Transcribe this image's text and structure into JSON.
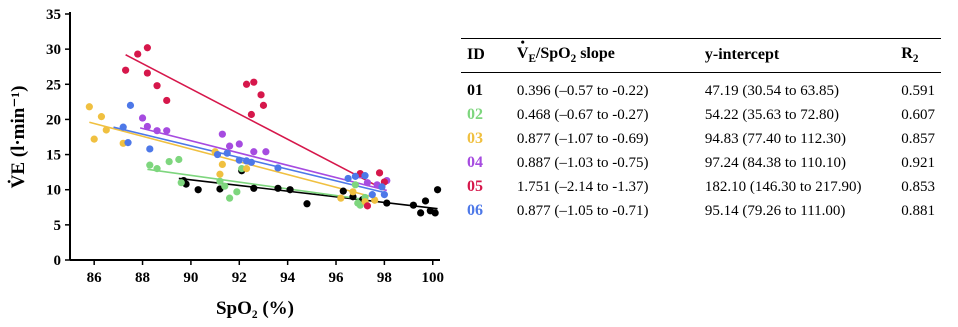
{
  "chart_data": {
    "type": "scatter",
    "xlabel": "SpO₂ (%)",
    "ylabel": "V̇E (l·min⁻¹)",
    "xlim": [
      85,
      100.3
    ],
    "ylim": [
      0,
      35
    ],
    "xticks": [
      86,
      88,
      90,
      92,
      94,
      96,
      98,
      100
    ],
    "yticks": [
      0,
      5,
      10,
      15,
      20,
      25,
      30,
      35
    ],
    "grid": false,
    "series": [
      {
        "name": "01",
        "color": "#000000",
        "points": [
          [
            89.7,
            11.3
          ],
          [
            89.8,
            10.8
          ],
          [
            90.3,
            10.0
          ],
          [
            91.2,
            10.1
          ],
          [
            92.1,
            12.7
          ],
          [
            92.6,
            10.2
          ],
          [
            93.6,
            10.2
          ],
          [
            94.1,
            10.0
          ],
          [
            94.8,
            8.0
          ],
          [
            96.3,
            9.8
          ],
          [
            96.7,
            9.0
          ],
          [
            97.1,
            8.6
          ],
          [
            98.1,
            8.1
          ],
          [
            99.2,
            7.8
          ],
          [
            99.5,
            6.7
          ],
          [
            99.7,
            8.4
          ],
          [
            99.9,
            7.0
          ],
          [
            100.1,
            6.7
          ],
          [
            100.2,
            10.0
          ]
        ],
        "fit": [
          [
            89.5,
            11.6
          ],
          [
            100.2,
            7.3
          ]
        ]
      },
      {
        "name": "02",
        "color": "#7ed67e",
        "points": [
          [
            88.3,
            13.5
          ],
          [
            88.6,
            13.0
          ],
          [
            89.1,
            14.0
          ],
          [
            89.5,
            14.3
          ],
          [
            89.6,
            11.0
          ],
          [
            91.2,
            11.2
          ],
          [
            91.4,
            10.5
          ],
          [
            91.6,
            8.8
          ],
          [
            91.9,
            9.7
          ],
          [
            92.1,
            13.0
          ],
          [
            96.8,
            10.7
          ],
          [
            96.9,
            8.1
          ],
          [
            97.0,
            7.8
          ],
          [
            97.2,
            8.9
          ]
        ],
        "fit": [
          [
            88.2,
            12.9
          ],
          [
            97.2,
            8.6
          ]
        ]
      },
      {
        "name": "03",
        "color": "#f0c040",
        "points": [
          [
            85.8,
            21.8
          ],
          [
            86.0,
            17.2
          ],
          [
            86.3,
            20.4
          ],
          [
            86.5,
            18.5
          ],
          [
            87.2,
            16.6
          ],
          [
            91.0,
            15.4
          ],
          [
            91.2,
            12.2
          ],
          [
            91.3,
            13.6
          ],
          [
            92.3,
            13.0
          ],
          [
            96.2,
            8.8
          ],
          [
            96.7,
            9.7
          ],
          [
            97.2,
            8.3
          ],
          [
            97.6,
            8.5
          ]
        ],
        "fit": [
          [
            85.8,
            19.6
          ],
          [
            97.7,
            8.8
          ]
        ]
      },
      {
        "name": "04",
        "color": "#a64be0",
        "points": [
          [
            88.0,
            20.2
          ],
          [
            88.2,
            19.0
          ],
          [
            88.6,
            18.4
          ],
          [
            89.0,
            18.4
          ],
          [
            91.3,
            17.9
          ],
          [
            91.6,
            16.2
          ],
          [
            92.0,
            16.5
          ],
          [
            92.6,
            15.4
          ],
          [
            93.1,
            15.4
          ],
          [
            97.0,
            12.1
          ],
          [
            97.3,
            11.0
          ],
          [
            97.7,
            10.7
          ],
          [
            98.1,
            11.3
          ]
        ],
        "fit": [
          [
            87.9,
            18.8
          ],
          [
            98.1,
            9.9
          ]
        ]
      },
      {
        "name": "05",
        "color": "#d6174b",
        "points": [
          [
            87.3,
            27.0
          ],
          [
            87.8,
            29.3
          ],
          [
            88.2,
            30.2
          ],
          [
            88.2,
            26.6
          ],
          [
            88.6,
            24.8
          ],
          [
            89.0,
            22.7
          ],
          [
            92.3,
            25.0
          ],
          [
            92.5,
            20.7
          ],
          [
            92.6,
            25.3
          ],
          [
            92.9,
            23.5
          ],
          [
            93.0,
            22.0
          ],
          [
            97.0,
            12.3
          ],
          [
            97.3,
            7.7
          ],
          [
            97.8,
            12.4
          ],
          [
            98.0,
            11.1
          ]
        ],
        "fit": [
          [
            87.3,
            29.2
          ],
          [
            98.0,
            10.0
          ]
        ]
      },
      {
        "name": "06",
        "color": "#4d78e8",
        "points": [
          [
            87.2,
            18.9
          ],
          [
            87.4,
            16.7
          ],
          [
            87.5,
            22.0
          ],
          [
            88.3,
            15.8
          ],
          [
            91.1,
            15.0
          ],
          [
            91.5,
            15.2
          ],
          [
            92.0,
            14.2
          ],
          [
            92.3,
            14.1
          ],
          [
            92.5,
            13.9
          ],
          [
            93.6,
            13.1
          ],
          [
            96.5,
            11.6
          ],
          [
            96.8,
            11.9
          ],
          [
            97.2,
            12.0
          ],
          [
            97.5,
            9.3
          ],
          [
            97.9,
            10.4
          ],
          [
            98.0,
            9.3
          ]
        ],
        "fit": [
          [
            86.8,
            18.9
          ],
          [
            98.0,
            9.6
          ]
        ]
      }
    ]
  },
  "table": {
    "headers": {
      "id": "ID",
      "slope_v": "V",
      "slope_e": "E",
      "slope_rest": "/SpO",
      "slope_sub2": "2",
      "slope_tail": " slope",
      "intercept": "y-intercept",
      "r": "R",
      "r_sub": "2"
    },
    "rows": [
      {
        "id": "01",
        "color": "#000000",
        "slope": "0.396 (–0.57 to -0.22)",
        "intercept": "47.19 (30.54 to 63.85)",
        "r2": "0.591"
      },
      {
        "id": "02",
        "color": "#7ed67e",
        "slope": "0.468 (–0.67 to -0.27)",
        "intercept": "54.22 (35.63 to 72.80)",
        "r2": "0.607"
      },
      {
        "id": "03",
        "color": "#f0c040",
        "slope": "0.877 (–1.07 to -0.69)",
        "intercept": "94.83 (77.40 to 112.30)",
        "r2": "0.857"
      },
      {
        "id": "04",
        "color": "#a64be0",
        "slope": "0.887 (–1.03 to -0.75)",
        "intercept": "97.24 (84.38 to 110.10)",
        "r2": "0.921"
      },
      {
        "id": "05",
        "color": "#d6174b",
        "slope": "1.751 (–2.14 to -1.37)",
        "intercept": "182.10 (146.30 to 217.90)",
        "r2": "0.853"
      },
      {
        "id": "06",
        "color": "#4d78e8",
        "slope": "0.877 (–1.05 to -0.71)",
        "intercept": "95.14 (79.26 to 111.00)",
        "r2": "0.881"
      }
    ]
  }
}
